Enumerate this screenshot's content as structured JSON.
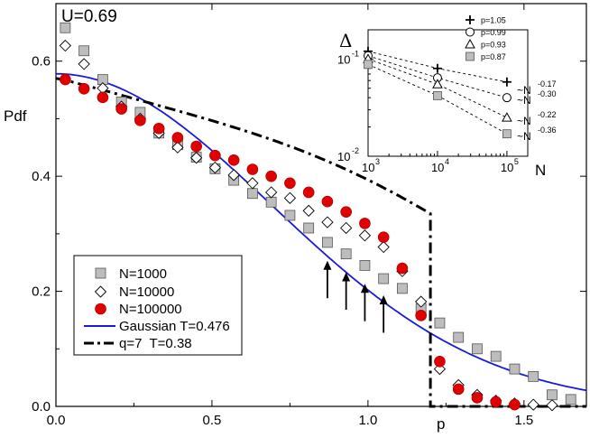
{
  "chart_data": {
    "type": "scatter",
    "title": "U=0.69",
    "xlabel": "p",
    "ylabel": "Pdf",
    "xlim": [
      0,
      1.7
    ],
    "ylim": [
      0,
      0.7
    ],
    "xticks": [
      "0.0",
      "0.5",
      "1.0",
      "1.5"
    ],
    "yticks": [
      "0.0",
      "0.2",
      "0.4",
      "0.6"
    ],
    "series": [
      {
        "name": "N=1000",
        "marker": "square",
        "color": "#bdbdbd",
        "x": [
          0.03,
          0.09,
          0.15,
          0.21,
          0.27,
          0.33,
          0.39,
          0.45,
          0.51,
          0.57,
          0.63,
          0.69,
          0.75,
          0.81,
          0.87,
          0.93,
          0.99,
          1.05,
          1.11,
          1.17,
          1.23,
          1.29,
          1.35,
          1.41,
          1.47,
          1.53,
          1.59,
          1.65
        ],
        "y": [
          0.658,
          0.618,
          0.568,
          0.529,
          0.511,
          0.475,
          0.455,
          0.433,
          0.413,
          0.393,
          0.37,
          0.355,
          0.332,
          0.31,
          0.285,
          0.265,
          0.245,
          0.222,
          0.205,
          0.17,
          0.145,
          0.12,
          0.1,
          0.087,
          0.065,
          0.052,
          0.02,
          0.012
        ]
      },
      {
        "name": "N=10000",
        "marker": "diamond",
        "color": "#ffffff",
        "x": [
          0.03,
          0.09,
          0.15,
          0.21,
          0.27,
          0.33,
          0.39,
          0.45,
          0.51,
          0.57,
          0.63,
          0.69,
          0.75,
          0.81,
          0.87,
          0.93,
          0.99,
          1.05,
          1.11,
          1.17,
          1.23,
          1.29,
          1.35,
          1.41,
          1.47,
          1.53,
          1.59
        ],
        "y": [
          0.627,
          0.595,
          0.553,
          0.521,
          0.5,
          0.475,
          0.45,
          0.432,
          0.415,
          0.402,
          0.388,
          0.372,
          0.362,
          0.34,
          0.32,
          0.31,
          0.297,
          0.277,
          0.235,
          0.182,
          0.065,
          0.037,
          0.02,
          0.01,
          0.005,
          0.003,
          0.002
        ]
      },
      {
        "name": "N=100000",
        "marker": "circle",
        "color": "#e00000",
        "x": [
          0.03,
          0.09,
          0.15,
          0.21,
          0.27,
          0.33,
          0.39,
          0.45,
          0.51,
          0.57,
          0.63,
          0.69,
          0.75,
          0.81,
          0.87,
          0.93,
          0.99,
          1.05,
          1.11,
          1.17,
          1.23,
          1.29,
          1.35,
          1.41,
          1.47
        ],
        "y": [
          0.568,
          0.552,
          0.537,
          0.517,
          0.497,
          0.483,
          0.467,
          0.452,
          0.436,
          0.428,
          0.412,
          0.4,
          0.388,
          0.372,
          0.356,
          0.338,
          0.318,
          0.294,
          0.24,
          0.158,
          0.078,
          0.03,
          0.015,
          0.008,
          0.003
        ]
      }
    ],
    "curves": [
      {
        "name": "Gaussian T=0.476",
        "style": "solid",
        "color": "#1a1adb"
      },
      {
        "name": "q=7  T=0.38",
        "style": "dashdot",
        "color": "#000000"
      }
    ],
    "gaussian": {
      "amplitude": 0.578,
      "sigma2": 0.476
    },
    "qgauss": {
      "amplitude": 0.57,
      "b": 0.59,
      "cutoff": 1.2,
      "drop_y": 0.335
    },
    "arrows_x": [
      0.87,
      0.93,
      0.99,
      1.05
    ],
    "arrows_y": [
      0.253,
      0.233,
      0.213,
      0.193
    ],
    "arrows_len": 0.065,
    "inset": {
      "ylabel": "Δ",
      "xlabel": "N",
      "xlog": [
        3,
        5.3
      ],
      "ylog": [
        -2,
        -0.7
      ],
      "xticks": [
        {
          "base": "10",
          "exp": "3"
        },
        {
          "base": "10",
          "exp": "4"
        },
        {
          "base": "10",
          "exp": "5"
        }
      ],
      "yticks": [
        {
          "base": "10",
          "exp": "-1"
        },
        {
          "base": "10",
          "exp": "-2"
        }
      ],
      "series": [
        {
          "name": "p=1.05",
          "marker": "plus",
          "N": [
            1000,
            10000,
            100000
          ],
          "values": [
            0.12,
            0.08,
            0.058
          ],
          "slope": "~N",
          "slope_exp": "-0.17"
        },
        {
          "name": "p=0.99",
          "marker": "circle",
          "N": [
            1000,
            10000,
            100000
          ],
          "values": [
            0.108,
            0.064,
            0.04
          ],
          "slope": "~N",
          "slope_exp": "-0.30"
        },
        {
          "name": "p=0.93",
          "marker": "triangle",
          "N": [
            1000,
            10000,
            100000
          ],
          "values": [
            0.1,
            0.055,
            0.025
          ],
          "slope": "~N",
          "slope_exp": "-0.22"
        },
        {
          "name": "p=0.87",
          "marker": "square",
          "N": [
            1000,
            10000,
            100000
          ],
          "values": [
            0.088,
            0.042,
            0.017
          ],
          "slope": "~N",
          "slope_exp": "-0.36"
        }
      ]
    }
  }
}
